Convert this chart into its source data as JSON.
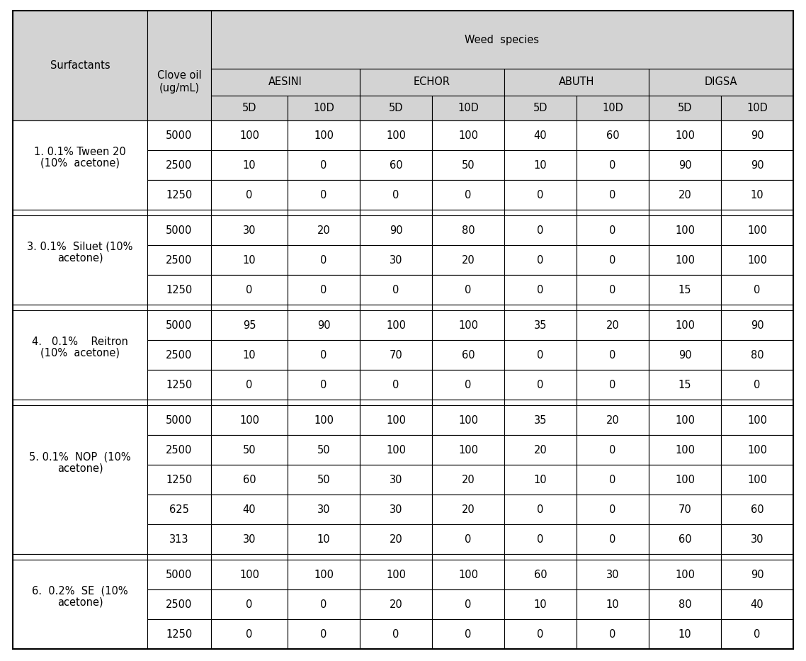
{
  "header_bg": "#d3d3d3",
  "cell_bg": "#ffffff",
  "sections": [
    {
      "line1": "1. 0.1% Tween 20",
      "line2": "(10%  acetone)",
      "rows": [
        {
          "conc": "5000",
          "data": [
            "100",
            "100",
            "100",
            "100",
            "40",
            "60",
            "100",
            "90"
          ]
        },
        {
          "conc": "2500",
          "data": [
            "10",
            "0",
            "60",
            "50",
            "10",
            "0",
            "90",
            "90"
          ]
        },
        {
          "conc": "1250",
          "data": [
            "0",
            "0",
            "0",
            "0",
            "0",
            "0",
            "20",
            "10"
          ]
        }
      ]
    },
    {
      "line1": "3. 0.1%  Siluet (10%",
      "line2": "acetone)",
      "rows": [
        {
          "conc": "5000",
          "data": [
            "30",
            "20",
            "90",
            "80",
            "0",
            "0",
            "100",
            "100"
          ]
        },
        {
          "conc": "2500",
          "data": [
            "10",
            "0",
            "30",
            "20",
            "0",
            "0",
            "100",
            "100"
          ]
        },
        {
          "conc": "1250",
          "data": [
            "0",
            "0",
            "0",
            "0",
            "0",
            "0",
            "15",
            "0"
          ]
        }
      ]
    },
    {
      "line1": "4.   0.1%    Reitron",
      "line2": "(10%  acetone)",
      "rows": [
        {
          "conc": "5000",
          "data": [
            "95",
            "90",
            "100",
            "100",
            "35",
            "20",
            "100",
            "90"
          ]
        },
        {
          "conc": "2500",
          "data": [
            "10",
            "0",
            "70",
            "60",
            "0",
            "0",
            "90",
            "80"
          ]
        },
        {
          "conc": "1250",
          "data": [
            "0",
            "0",
            "0",
            "0",
            "0",
            "0",
            "15",
            "0"
          ]
        }
      ]
    },
    {
      "line1": "5. 0.1%  NOP  (10%",
      "line2": "acetone)",
      "rows": [
        {
          "conc": "5000",
          "data": [
            "100",
            "100",
            "100",
            "100",
            "35",
            "20",
            "100",
            "100"
          ]
        },
        {
          "conc": "2500",
          "data": [
            "50",
            "50",
            "100",
            "100",
            "20",
            "0",
            "100",
            "100"
          ]
        },
        {
          "conc": "1250",
          "data": [
            "60",
            "50",
            "30",
            "20",
            "10",
            "0",
            "100",
            "100"
          ]
        },
        {
          "conc": "625",
          "data": [
            "40",
            "30",
            "30",
            "20",
            "0",
            "0",
            "70",
            "60"
          ]
        },
        {
          "conc": "313",
          "data": [
            "30",
            "10",
            "20",
            "0",
            "0",
            "0",
            "60",
            "30"
          ]
        }
      ]
    },
    {
      "line1": "6.  0.2%  SE  (10%",
      "line2": "acetone)",
      "rows": [
        {
          "conc": "5000",
          "data": [
            "100",
            "100",
            "100",
            "100",
            "60",
            "30",
            "100",
            "90"
          ]
        },
        {
          "conc": "2500",
          "data": [
            "0",
            "0",
            "20",
            "0",
            "10",
            "10",
            "80",
            "40"
          ]
        },
        {
          "conc": "1250",
          "data": [
            "0",
            "0",
            "0",
            "0",
            "0",
            "0",
            "10",
            "0"
          ]
        }
      ]
    }
  ]
}
